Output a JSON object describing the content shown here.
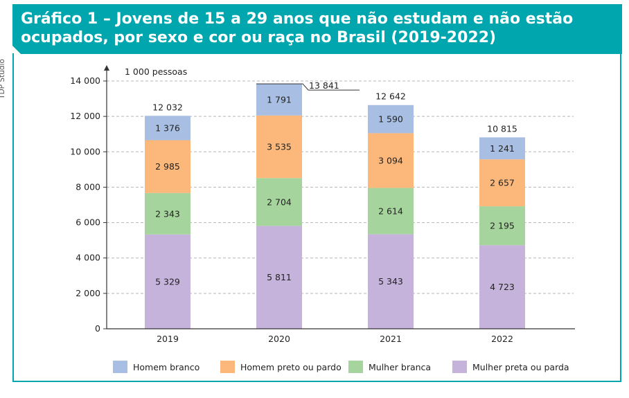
{
  "title": "Gráfico 1 – Jovens de 15 a 29 anos que não estudam e não estão ocupados, por sexo e cor ou raça no Brasil (2019-2022)",
  "credit": "TDP Studio",
  "chart_data": {
    "type": "bar",
    "stacked": true,
    "unit_label": "1 000 pessoas",
    "categories": [
      "2019",
      "2020",
      "2021",
      "2022"
    ],
    "series": [
      {
        "name": "Mulher preta ou parda",
        "color": "#c5b3db",
        "values": [
          5329,
          5811,
          5343,
          4723
        ],
        "labels": [
          "5 329",
          "5 811",
          "5 343",
          "4 723"
        ]
      },
      {
        "name": "Mulher branca",
        "color": "#a5d49c",
        "values": [
          2343,
          2704,
          2614,
          2195
        ],
        "labels": [
          "2 343",
          "2 704",
          "2 614",
          "2 195"
        ]
      },
      {
        "name": "Homem preto ou pardo",
        "color": "#fbb87a",
        "values": [
          2985,
          3535,
          3094,
          2657
        ],
        "labels": [
          "2 985",
          "3 535",
          "3 094",
          "2 657"
        ]
      },
      {
        "name": "Homem branco",
        "color": "#a8bfe3",
        "values": [
          1376,
          1791,
          1590,
          1241
        ],
        "labels": [
          "1 376",
          "1 791",
          "1 590",
          "1 241"
        ]
      }
    ],
    "totals": [
      12032,
      13841,
      12642,
      10815
    ],
    "total_labels": [
      "12 032",
      "13 841",
      "12 642",
      "10 815"
    ],
    "ylim": [
      0,
      14000
    ],
    "yticks": [
      0,
      2000,
      4000,
      6000,
      8000,
      10000,
      12000,
      14000
    ],
    "ytick_labels": [
      "0",
      "2 000",
      "4 000",
      "6 000",
      "8 000",
      "10 000",
      "12 000",
      "14 000"
    ],
    "grid": true,
    "legend_position": "bottom",
    "legend_order": [
      "Homem branco",
      "Homem preto ou pardo",
      "Mulher branca",
      "Mulher preta ou parda"
    ]
  }
}
